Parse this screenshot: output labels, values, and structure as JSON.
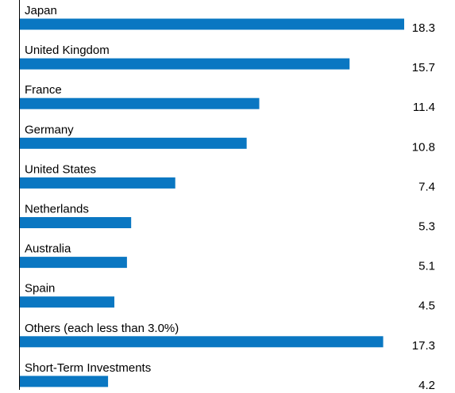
{
  "chart_data": {
    "type": "bar",
    "orientation": "horizontal",
    "categories": [
      "Japan",
      "United Kingdom",
      "France",
      "Germany",
      "United States",
      "Netherlands",
      "Australia",
      "Spain",
      "Others (each less than 3.0%)",
      "Short-Term Investments"
    ],
    "values": [
      18.3,
      15.7,
      11.4,
      10.8,
      7.4,
      5.3,
      5.1,
      4.5,
      17.3,
      4.2
    ],
    "value_labels": [
      "18.3",
      "15.7",
      "11.4",
      "10.8",
      "7.4",
      "5.3",
      "5.1",
      "4.5",
      "17.3",
      "4.2"
    ],
    "title": "",
    "xlabel": "",
    "ylabel": "",
    "xlim": [
      0,
      18.3
    ],
    "grid": false,
    "legend": "none",
    "bar_color": "#0a77c2"
  }
}
